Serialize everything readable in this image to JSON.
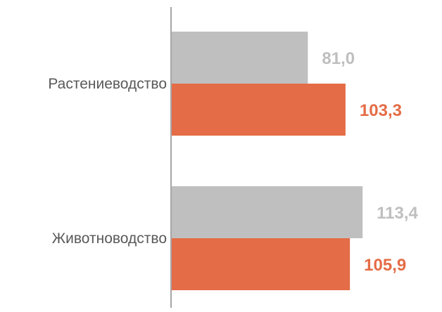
{
  "chart_data": {
    "type": "bar",
    "orientation": "horizontal",
    "categories": [
      "Растениеводство",
      "Животноводство"
    ],
    "series": [
      {
        "values": [
          81.0,
          113.4
        ],
        "labels": [
          "81,0",
          "113,4"
        ],
        "color": "#bfbfbf",
        "label_color": "#bfbfbf"
      },
      {
        "values": [
          103.3,
          105.9
        ],
        "labels": [
          "103,3",
          "105,9"
        ],
        "color": "#e46c46",
        "label_color": "#e46c46"
      }
    ],
    "xlim": [
      0,
      150
    ],
    "grid": false,
    "legend": "none"
  }
}
